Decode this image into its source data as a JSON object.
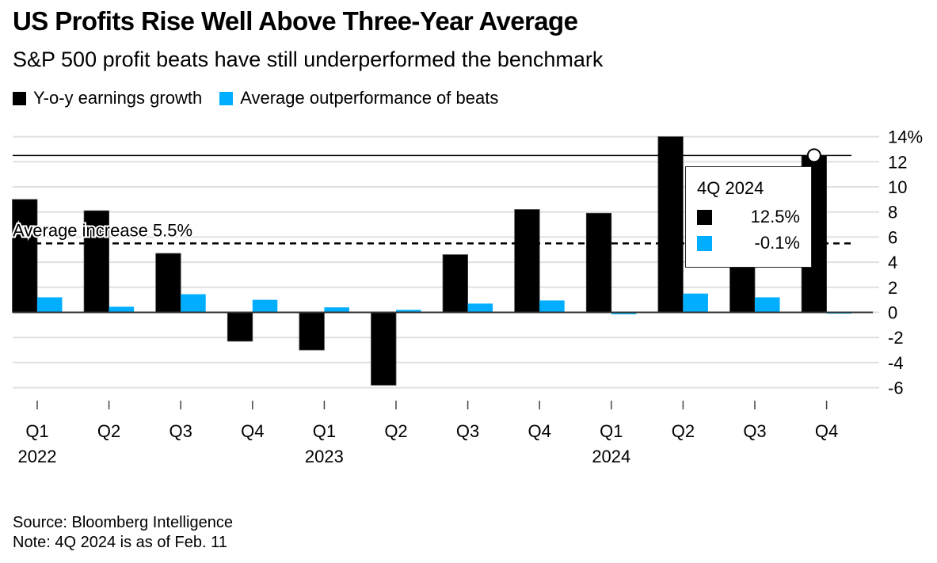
{
  "header": {
    "title": "US Profits Rise Well Above Three-Year Average",
    "subtitle": "S&P 500 profit beats have still underperformed the benchmark"
  },
  "legend": [
    {
      "label": "Y-o-y earnings growth",
      "color": "#000000"
    },
    {
      "label": "Average outperformance of beats",
      "color": "#00AEFF"
    }
  ],
  "tooltip": {
    "title": "4Q 2024",
    "rows": [
      {
        "value": "12.5%",
        "color": "#000000"
      },
      {
        "value": "-0.1%",
        "color": "#00AEFF"
      }
    ]
  },
  "footer": {
    "source": "Source: Bloomberg Intelligence",
    "note": "Note: 4Q 2024 is as of Feb. 11"
  },
  "chart_data": {
    "type": "bar",
    "title": "US Profits Rise Well Above Three-Year Average",
    "subtitle": "S&P 500 profit beats have still underperformed the benchmark",
    "xlabel": "",
    "ylabel": "",
    "categories": [
      "Q1 2022",
      "Q2 2022",
      "Q3 2022",
      "Q4 2022",
      "Q1 2023",
      "Q2 2023",
      "Q3 2023",
      "Q4 2023",
      "Q1 2024",
      "Q2 2024",
      "Q3 2024",
      "Q4 2024"
    ],
    "x_tick_labels": [
      {
        "quarter": "Q1",
        "year": "2022"
      },
      {
        "quarter": "Q2",
        "year": ""
      },
      {
        "quarter": "Q3",
        "year": ""
      },
      {
        "quarter": "Q4",
        "year": ""
      },
      {
        "quarter": "Q1",
        "year": "2023"
      },
      {
        "quarter": "Q2",
        "year": ""
      },
      {
        "quarter": "Q3",
        "year": ""
      },
      {
        "quarter": "Q4",
        "year": ""
      },
      {
        "quarter": "Q1",
        "year": "2024"
      },
      {
        "quarter": "Q2",
        "year": ""
      },
      {
        "quarter": "Q3",
        "year": ""
      },
      {
        "quarter": "Q4",
        "year": ""
      }
    ],
    "series": [
      {
        "name": "Y-o-y earnings growth",
        "color": "#000000",
        "values": [
          9.0,
          8.1,
          4.7,
          -2.3,
          -3.0,
          -5.8,
          4.6,
          8.2,
          7.9,
          14.0,
          5.8,
          12.5
        ]
      },
      {
        "name": "Average outperformance of beats",
        "color": "#00AEFF",
        "values": [
          1.2,
          0.45,
          1.45,
          1.0,
          0.4,
          0.2,
          0.7,
          0.95,
          -0.15,
          1.5,
          1.2,
          -0.1
        ]
      }
    ],
    "reference_lines": [
      {
        "value": 5.5,
        "style": "dashed",
        "label": "Average increase 5.5%"
      },
      {
        "value": 12.5,
        "style": "solid",
        "label": ""
      }
    ],
    "highlight": {
      "category": "Q4 2024",
      "value": 12.5,
      "marker": "circle"
    },
    "y_ticks": [
      14,
      12,
      10,
      8,
      6,
      4,
      2,
      0,
      -2,
      -4,
      -6
    ],
    "y_tick_labels": [
      "14%",
      "12",
      "10",
      "8",
      "6",
      "4",
      "2",
      "0",
      "-2",
      "-4",
      "-6"
    ],
    "ylim": [
      -6,
      14
    ],
    "grid": true,
    "legend_position": "top-left"
  }
}
